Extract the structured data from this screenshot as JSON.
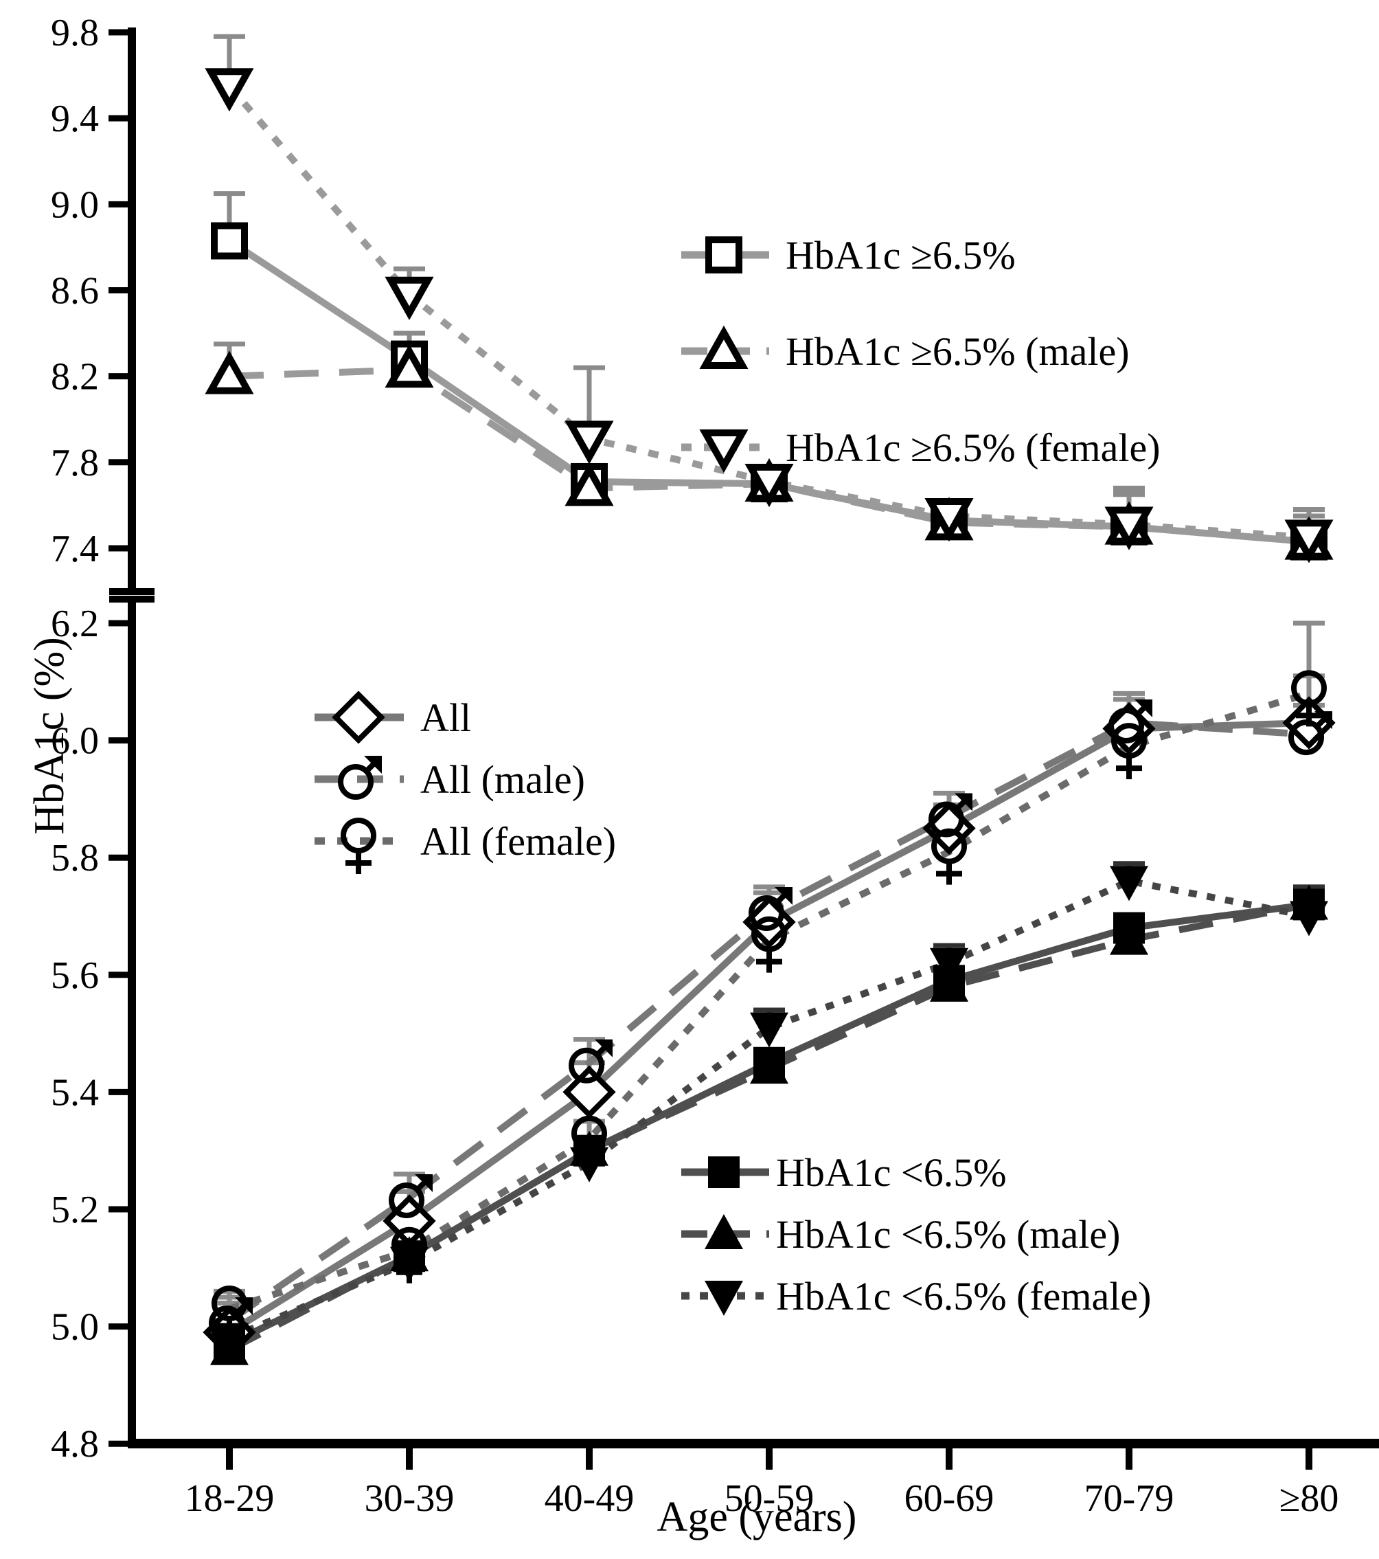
{
  "chart_data": {
    "type": "line",
    "title": "",
    "xlabel": "Age (years)",
    "ylabel": "HbA1c (%)",
    "categories": [
      "18-29",
      "30-39",
      "40-49",
      "50-59",
      "60-69",
      "70-79",
      "≥80"
    ],
    "grid": false,
    "panels": [
      {
        "name": "hba1c-ge-65-panel",
        "ylim": [
          7.4,
          9.8
        ],
        "yticks": [
          "9.8",
          "9.4",
          "9.0",
          "8.6",
          "8.2",
          "7.8",
          "7.4"
        ],
        "legend_position": "upper-right-inside",
        "series": [
          {
            "slug": "hba1c-ge65",
            "label": "HbA1c ≥6.5%",
            "marker": "square-open",
            "line": "solid",
            "color": "#9a9a9a",
            "err_color": "#8b8b8b",
            "values": [
              8.83,
              8.28,
              7.71,
              7.7,
              7.53,
              7.5,
              7.43
            ],
            "err_up": [
              0.22,
              0.12,
              0.05,
              0.04,
              0.05,
              0.18,
              0.15
            ]
          },
          {
            "slug": "hba1c-ge65-male",
            "label": "HbA1c ≥6.5%  (male)",
            "marker": "triangle-up-open",
            "line": "long-dash",
            "color": "#9a9a9a",
            "err_color": "#8b8b8b",
            "values": [
              8.2,
              8.23,
              7.68,
              7.7,
              7.52,
              7.5,
              7.43
            ],
            "err_up": [
              0.15,
              0.17,
              0.05,
              0.05,
              0.04,
              0.15,
              0.12
            ]
          },
          {
            "slug": "hba1c-ge65-female",
            "label": "HbA1c ≥6.5%  (female)",
            "marker": "triangle-down-open",
            "line": "dot",
            "color": "#9a9a9a",
            "err_color": "#8b8b8b",
            "values": [
              9.55,
              8.58,
              7.91,
              7.71,
              7.55,
              7.51,
              7.45
            ],
            "err_up": [
              0.23,
              0.12,
              0.33,
              0.04,
              0.04,
              0.15,
              0.13
            ]
          }
        ]
      },
      {
        "name": "all-and-lt-65-panel",
        "ylim": [
          4.8,
          6.2
        ],
        "yticks": [
          "6.2",
          "6.0",
          "5.8",
          "5.6",
          "5.4",
          "5.2",
          "5.0",
          "4.8"
        ],
        "legend_position": "upper-left-inside and lower-right-inside",
        "series": [
          {
            "slug": "all",
            "label": "All",
            "marker": "diamond-open",
            "line": "solid",
            "color": "#787878",
            "err_color": "#8b8b8b",
            "values": [
              4.99,
              5.18,
              5.4,
              5.69,
              5.85,
              6.02,
              6.03
            ],
            "err_up": [
              0.05,
              0.05,
              0.05,
              0.05,
              0.04,
              0.05,
              0.08
            ]
          },
          {
            "slug": "all-male",
            "label": "All  (male)",
            "marker": "male-symbol",
            "line": "long-dash",
            "color": "#787878",
            "err_color": "#8b8b8b",
            "values": [
              5.01,
              5.22,
              5.45,
              5.71,
              5.87,
              6.03,
              6.01
            ],
            "err_up": [
              0.04,
              0.04,
              0.04,
              0.04,
              0.04,
              0.05,
              0.05
            ]
          },
          {
            "slug": "all-female",
            "label": "All  (female)",
            "marker": "female-symbol",
            "line": "dot",
            "color": "#6b6b6b",
            "err_color": "#8b8b8b",
            "values": [
              5.03,
              5.13,
              5.32,
              5.66,
              5.81,
              5.99,
              6.08
            ],
            "err_up": [
              0.03,
              0.04,
              0.03,
              0.04,
              0.03,
              0.04,
              0.12
            ]
          },
          {
            "slug": "hba1c-lt65",
            "label": "HbA1c <6.5%",
            "marker": "square-filled",
            "line": "solid",
            "color": "#4f4f4f",
            "err_color": "#303030",
            "values": [
              4.97,
              5.12,
              5.3,
              5.45,
              5.59,
              5.68,
              5.72
            ],
            "err_up": [
              0.03,
              0.02,
              0.02,
              0.02,
              0.02,
              0.02,
              0.03
            ]
          },
          {
            "slug": "hba1c-lt65-male",
            "label": "HbA1c <6.5%  (male)",
            "marker": "triangle-up-filled",
            "line": "long-dash",
            "color": "#4f4f4f",
            "err_color": "#303030",
            "values": [
              4.96,
              5.12,
              5.3,
              5.44,
              5.58,
              5.66,
              5.72
            ],
            "err_up": [
              0.02,
              0.02,
              0.02,
              0.02,
              0.02,
              0.02,
              0.03
            ]
          },
          {
            "slug": "hba1c-lt65-female",
            "label": "HbA1c <6.5%  (female)",
            "marker": "triangle-down-filled",
            "line": "fine-dot",
            "color": "#454545",
            "err_color": "#303030",
            "values": [
              4.98,
              5.11,
              5.28,
              5.51,
              5.62,
              5.76,
              5.7
            ],
            "err_up": [
              0.03,
              0.02,
              0.02,
              0.03,
              0.03,
              0.03,
              0.04
            ]
          }
        ]
      }
    ]
  }
}
